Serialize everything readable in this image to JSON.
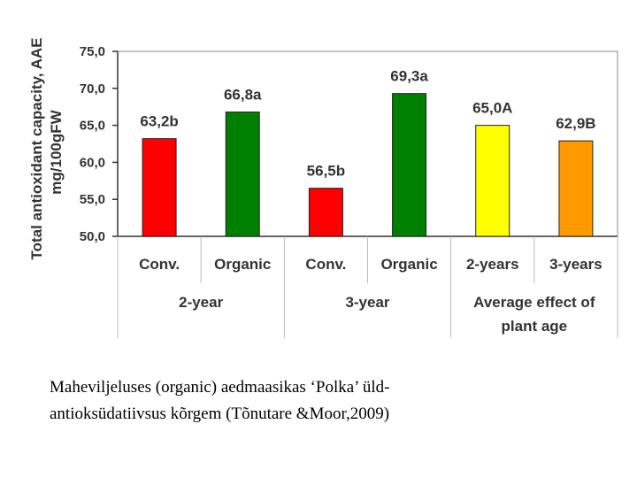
{
  "chart_data": {
    "type": "bar",
    "ylabel": [
      "Total antioxidant capacity, AAE",
      "mg/100gFW"
    ],
    "ylim": [
      50,
      75
    ],
    "yticks": [
      "50,0",
      "55,0",
      "60,0",
      "65,0",
      "70,0",
      "75,0"
    ],
    "grid": false,
    "legend": "none",
    "categories": [
      "Conv.",
      "Organic",
      "Conv.",
      "Organic",
      "2-years",
      "3-years"
    ],
    "values": [
      63.2,
      66.8,
      56.5,
      69.3,
      65.0,
      62.9
    ],
    "data_labels": [
      "63,2b",
      "66,8a",
      "56,5b",
      "69,3a",
      "65,0A",
      "62,9B"
    ],
    "colors": [
      "#ff0000",
      "#008000",
      "#ff0000",
      "#008000",
      "#ffff00",
      "#ff9900"
    ],
    "groups": [
      {
        "lines": [
          "2-year"
        ]
      },
      {
        "lines": [
          "3-year"
        ]
      },
      {
        "lines": [
          "Average effect of",
          "plant age"
        ]
      }
    ]
  },
  "caption": {
    "line1": "Maheviljeluses (organic)  aedmaasikas ‘Polka’ üld-",
    "line2": "antioksüdatiivsus kõrgem (Tõnutare &Moor,2009)"
  }
}
